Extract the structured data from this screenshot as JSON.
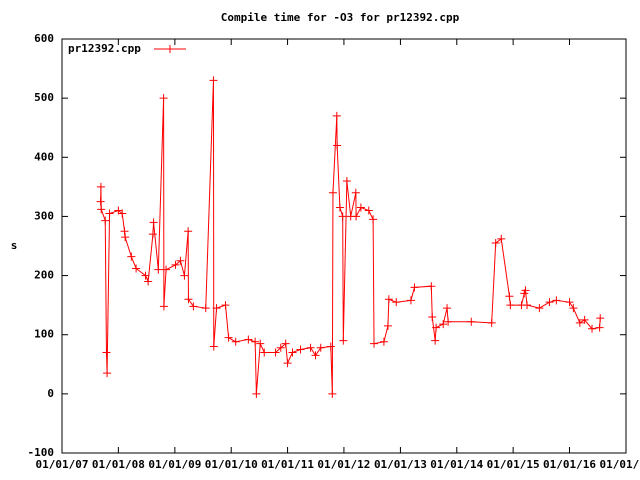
{
  "chart_data": {
    "type": "line",
    "title": "Compile time for -O3 for pr12392.cpp",
    "ylabel": "s",
    "legend": "top-left",
    "grid": false,
    "xlim": [
      "2007-01-01",
      "2017-01-01"
    ],
    "xticks": [
      {
        "value": "2007-01-01",
        "label": "01/01/07"
      },
      {
        "value": "2008-01-01",
        "label": "01/01/08"
      },
      {
        "value": "2009-01-01",
        "label": "01/01/09"
      },
      {
        "value": "2010-01-01",
        "label": "01/01/10"
      },
      {
        "value": "2011-01-01",
        "label": "01/01/11"
      },
      {
        "value": "2012-01-01",
        "label": "01/01/12"
      },
      {
        "value": "2013-01-01",
        "label": "01/01/13"
      },
      {
        "value": "2014-01-01",
        "label": "01/01/14"
      },
      {
        "value": "2015-01-01",
        "label": "01/01/15"
      },
      {
        "value": "2016-01-01",
        "label": "01/01/16"
      },
      {
        "value": "2017-01-01",
        "label": "01/01/17"
      }
    ],
    "ylim": [
      -100,
      600
    ],
    "yticks": [
      -100,
      0,
      100,
      200,
      300,
      400,
      500,
      600
    ],
    "x": [
      "2007-09-08",
      "2007-09-10",
      "2007-09-12",
      "2007-10-08",
      "2007-10-16",
      "2007-10-20",
      "2007-11-05",
      "2008-01-01",
      "2008-01-26",
      "2008-02-10",
      "2008-02-14",
      "2008-03-25",
      "2008-04-25",
      "2008-06-25",
      "2008-07-12",
      "2008-08-12",
      "2008-08-16",
      "2008-09-16",
      "2008-10-20",
      "2008-10-22",
      "2008-11-05",
      "2009-01-05",
      "2009-02-06",
      "2009-03-04",
      "2009-03-28",
      "2009-03-30",
      "2009-05-01",
      "2009-07-20",
      "2009-09-08",
      "2009-09-10",
      "2009-09-28",
      "2009-11-25",
      "2009-12-15",
      "2010-01-30",
      "2010-04-22",
      "2010-06-05",
      "2010-06-13",
      "2010-07-08",
      "2010-08-03",
      "2010-10-15",
      "2010-11-18",
      "2010-12-20",
      "2011-01-01",
      "2011-02-02",
      "2011-03-26",
      "2011-05-30",
      "2011-07-01",
      "2011-08-04",
      "2011-10-08",
      "2011-10-18",
      "2011-10-22",
      "2011-11-16",
      "2011-11-18",
      "2011-12-06",
      "2011-12-24",
      "2011-12-28",
      "2012-01-20",
      "2012-02-14",
      "2012-03-18",
      "2012-03-20",
      "2012-04-20",
      "2012-06-10",
      "2012-07-08",
      "2012-07-14",
      "2012-09-16",
      "2012-10-12",
      "2012-10-18",
      "2012-12-05",
      "2013-03-10",
      "2013-04-02",
      "2013-07-20",
      "2013-07-26",
      "2013-08-14",
      "2013-08-20",
      "2013-10-05",
      "2013-10-30",
      "2013-11-06",
      "2014-04-05",
      "2014-08-15",
      "2014-09-10",
      "2014-10-16",
      "2014-12-08",
      "2014-12-14",
      "2015-02-24",
      "2015-03-14",
      "2015-03-22",
      "2015-04-01",
      "2015-06-20",
      "2015-08-25",
      "2015-10-08",
      "2016-01-01",
      "2016-01-26",
      "2016-03-08",
      "2016-04-08",
      "2016-05-26",
      "2016-07-14",
      "2016-07-18"
    ],
    "series": [
      {
        "name": "pr12392.cpp",
        "color": "#ff0000",
        "values": [
          325,
          350,
          312,
          293,
          70,
          35,
          305,
          310,
          305,
          275,
          265,
          232,
          212,
          200,
          190,
          270,
          290,
          210,
          500,
          148,
          210,
          218,
          225,
          200,
          275,
          160,
          148,
          145,
          530,
          80,
          145,
          150,
          95,
          88,
          92,
          88,
          0,
          85,
          70,
          70,
          78,
          85,
          52,
          70,
          75,
          78,
          65,
          78,
          80,
          0,
          340,
          470,
          420,
          315,
          300,
          90,
          360,
          300,
          340,
          300,
          315,
          310,
          295,
          85,
          88,
          115,
          160,
          155,
          158,
          180,
          182,
          130,
          90,
          112,
          118,
          145,
          122,
          122,
          120,
          255,
          262,
          165,
          150,
          150,
          170,
          175,
          150,
          145,
          155,
          158,
          155,
          145,
          120,
          125,
          110,
          112,
          128
        ]
      }
    ]
  }
}
